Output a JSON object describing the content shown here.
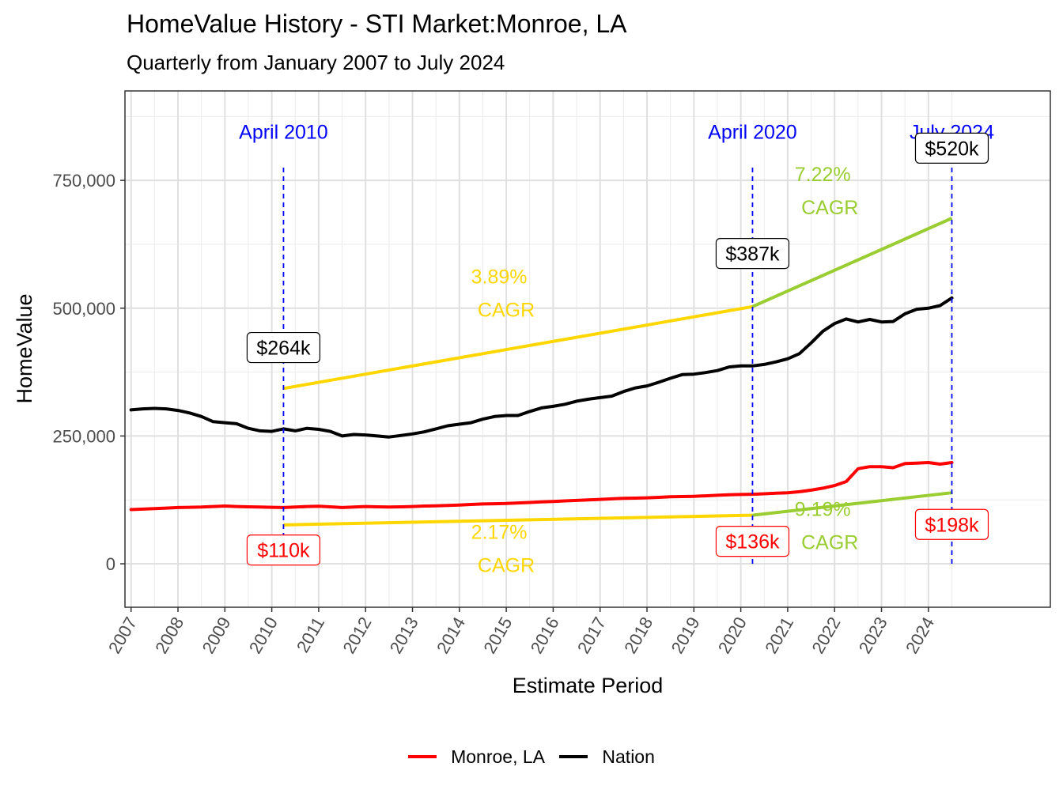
{
  "chart_data": {
    "type": "line",
    "title": "HomeValue History - STI Market:Monroe, LA",
    "subtitle": "Quarterly from January 2007 to July 2024",
    "xlabel": "Estimate Period",
    "ylabel": "HomeValue",
    "xlim": [
      2006.87,
      2026.6
    ],
    "ylim": [
      -85000,
      925000
    ],
    "x_ticks": [
      2007,
      2008,
      2009,
      2010,
      2011,
      2012,
      2013,
      2014,
      2015,
      2016,
      2017,
      2018,
      2019,
      2020,
      2021,
      2022,
      2023,
      2024
    ],
    "y_ticks": [
      0,
      250000,
      500000,
      750000
    ],
    "y_tick_labels": [
      "0",
      "250,000",
      "500,000",
      "750,000"
    ],
    "grid": true,
    "legend_position": "bottom",
    "colors": {
      "monroe": "#ff0000",
      "nation": "#000000",
      "cagr_period1": "#ffd700",
      "cagr_period2": "#9acd32",
      "markers": "#0000ff"
    },
    "series": [
      {
        "name": "Monroe, LA",
        "color": "#ff0000",
        "x": [
          2007.0,
          2007.25,
          2007.5,
          2007.75,
          2008.0,
          2008.25,
          2008.5,
          2008.75,
          2009.0,
          2009.25,
          2009.5,
          2009.75,
          2010.0,
          2010.25,
          2010.5,
          2010.75,
          2011.0,
          2011.25,
          2011.5,
          2011.75,
          2012.0,
          2012.25,
          2012.5,
          2012.75,
          2013.0,
          2013.25,
          2013.5,
          2013.75,
          2014.0,
          2014.25,
          2014.5,
          2014.75,
          2015.0,
          2015.25,
          2015.5,
          2015.75,
          2016.0,
          2016.25,
          2016.5,
          2016.75,
          2017.0,
          2017.25,
          2017.5,
          2017.75,
          2018.0,
          2018.25,
          2018.5,
          2018.75,
          2019.0,
          2019.25,
          2019.5,
          2019.75,
          2020.0,
          2020.25,
          2020.5,
          2020.75,
          2021.0,
          2021.25,
          2021.5,
          2021.75,
          2022.0,
          2022.25,
          2022.5,
          2022.75,
          2023.0,
          2023.25,
          2023.5,
          2023.75,
          2024.0,
          2024.25,
          2024.5
        ],
        "values": [
          106000,
          107000,
          108000,
          109000,
          110000,
          110500,
          111000,
          112000,
          113000,
          112000,
          111500,
          111000,
          110500,
          110000,
          111000,
          112000,
          112500,
          111500,
          110000,
          111000,
          112000,
          111500,
          111000,
          111500,
          112000,
          113000,
          113500,
          114000,
          115000,
          116000,
          117000,
          117500,
          118000,
          119000,
          120000,
          121000,
          122000,
          123000,
          124000,
          125000,
          126000,
          127000,
          128000,
          128500,
          129000,
          130000,
          131000,
          131500,
          132000,
          133000,
          134000,
          135000,
          135500,
          136000,
          137000,
          138000,
          139000,
          141000,
          144000,
          148000,
          153000,
          161000,
          186000,
          190000,
          190000,
          188000,
          196000,
          197000,
          198000,
          195000,
          198000
        ]
      },
      {
        "name": "Nation",
        "color": "#000000",
        "x": [
          2007.0,
          2007.25,
          2007.5,
          2007.75,
          2008.0,
          2008.25,
          2008.5,
          2008.75,
          2009.0,
          2009.25,
          2009.5,
          2009.75,
          2010.0,
          2010.25,
          2010.5,
          2010.75,
          2011.0,
          2011.25,
          2011.5,
          2011.75,
          2012.0,
          2012.25,
          2012.5,
          2012.75,
          2013.0,
          2013.25,
          2013.5,
          2013.75,
          2014.0,
          2014.25,
          2014.5,
          2014.75,
          2015.0,
          2015.25,
          2015.5,
          2015.75,
          2016.0,
          2016.25,
          2016.5,
          2016.75,
          2017.0,
          2017.25,
          2017.5,
          2017.75,
          2018.0,
          2018.25,
          2018.5,
          2018.75,
          2019.0,
          2019.25,
          2019.5,
          2019.75,
          2020.0,
          2020.25,
          2020.5,
          2020.75,
          2021.0,
          2021.25,
          2021.5,
          2021.75,
          2022.0,
          2022.25,
          2022.5,
          2022.75,
          2023.0,
          2023.25,
          2023.5,
          2023.75,
          2024.0,
          2024.25,
          2024.5
        ],
        "values": [
          301000,
          303000,
          304000,
          303000,
          300000,
          295000,
          288000,
          278000,
          276000,
          274000,
          265000,
          260000,
          259000,
          264000,
          260000,
          265000,
          263000,
          259000,
          250000,
          253000,
          252000,
          250000,
          248000,
          251000,
          254000,
          258000,
          264000,
          270000,
          273000,
          276000,
          283000,
          288000,
          290000,
          290000,
          298000,
          305000,
          308000,
          312000,
          318000,
          322000,
          325000,
          328000,
          337000,
          344000,
          348000,
          355000,
          363000,
          370000,
          371000,
          374000,
          378000,
          385000,
          387000,
          387000,
          390000,
          395000,
          401000,
          411000,
          432000,
          455000,
          470000,
          479000,
          473000,
          478000,
          473000,
          474000,
          489000,
          498000,
          500000,
          505000,
          520000
        ]
      }
    ],
    "cagr_lines": [
      {
        "color": "#ffd700",
        "x": [
          2010.25,
          2020.25
        ],
        "values": [
          343000,
          503000
        ]
      },
      {
        "color": "#9acd32",
        "x": [
          2020.25,
          2024.5
        ],
        "values": [
          503000,
          676000
        ]
      },
      {
        "color": "#ffd700",
        "x": [
          2010.25,
          2020.25
        ],
        "values": [
          76000,
          95000
        ]
      },
      {
        "color": "#9acd32",
        "x": [
          2020.25,
          2024.5
        ],
        "values": [
          95000,
          139000
        ]
      }
    ],
    "cagr_labels": [
      {
        "color": "#ffd700",
        "pct": "3.89%",
        "word": "CAGR",
        "x": 2015.1,
        "y": 530000
      },
      {
        "color": "#9acd32",
        "pct": "7.22%",
        "word": "CAGR",
        "x": 2022.0,
        "y": 730000
      },
      {
        "color": "#ffd700",
        "pct": "2.17%",
        "word": "CAGR",
        "x": 2015.1,
        "y": 30000
      },
      {
        "color": "#9acd32",
        "pct": "9.19%",
        "word": "CAGR",
        "x": 2022.0,
        "y": 75000
      }
    ],
    "vlines": [
      {
        "x": 2010.25,
        "label": "April 2010",
        "color": "#0000ff"
      },
      {
        "x": 2020.25,
        "label": "April 2020",
        "color": "#0000ff"
      },
      {
        "x": 2024.5,
        "label": "July 2024",
        "color": "#0000ff"
      }
    ],
    "vline_label_y": 845000,
    "vline_top": 775000,
    "value_labels": [
      {
        "text": "$264k",
        "x": 2010.25,
        "y": 423000,
        "color": "#000000"
      },
      {
        "text": "$387k",
        "x": 2020.25,
        "y": 607000,
        "color": "#000000"
      },
      {
        "text": "$520k",
        "x": 2024.5,
        "y": 813000,
        "color": "#000000"
      },
      {
        "text": "$110k",
        "x": 2010.25,
        "y": 27000,
        "color": "#ff0000"
      },
      {
        "text": "$136k",
        "x": 2020.25,
        "y": 44000,
        "color": "#ff0000"
      },
      {
        "text": "$198k",
        "x": 2024.5,
        "y": 77000,
        "color": "#ff0000"
      }
    ]
  }
}
